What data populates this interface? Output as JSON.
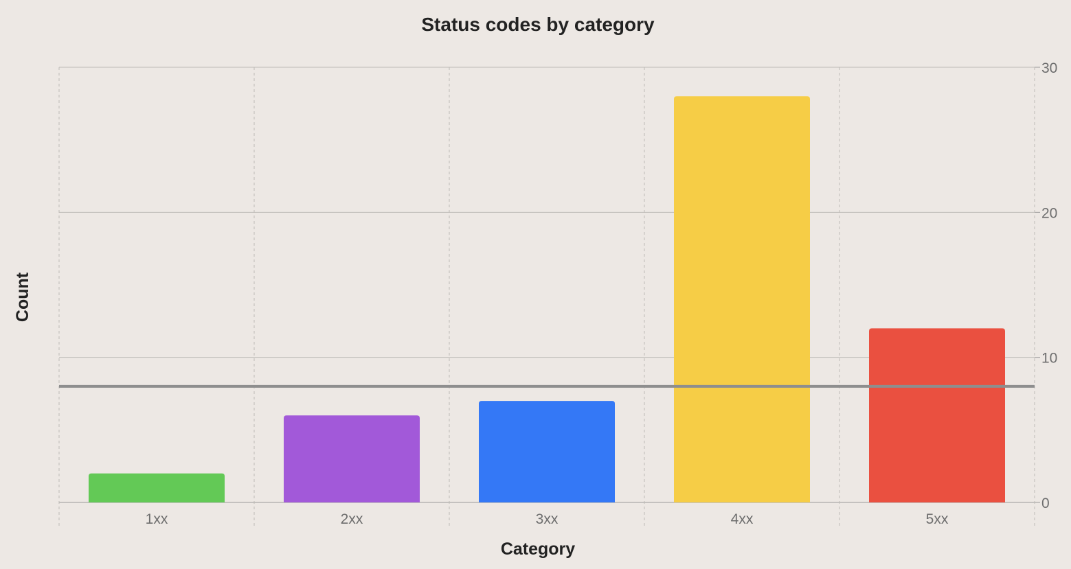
{
  "chart_data": {
    "type": "bar",
    "title": "Status codes by category",
    "xlabel": "Category",
    "ylabel": "Count",
    "categories": [
      "1xx",
      "2xx",
      "3xx",
      "4xx",
      "5xx"
    ],
    "values": [
      2,
      6,
      7,
      28,
      12
    ],
    "colors": [
      "#63c956",
      "#a259d9",
      "#3478f6",
      "#f6cd46",
      "#ea5040"
    ],
    "ylim": [
      0,
      30
    ],
    "yticks": [
      0,
      10,
      20,
      30
    ],
    "y_axis_side": "right",
    "reference_line": {
      "value": 8,
      "color": "#8e8e8e"
    },
    "grid": true,
    "legend": "none"
  }
}
